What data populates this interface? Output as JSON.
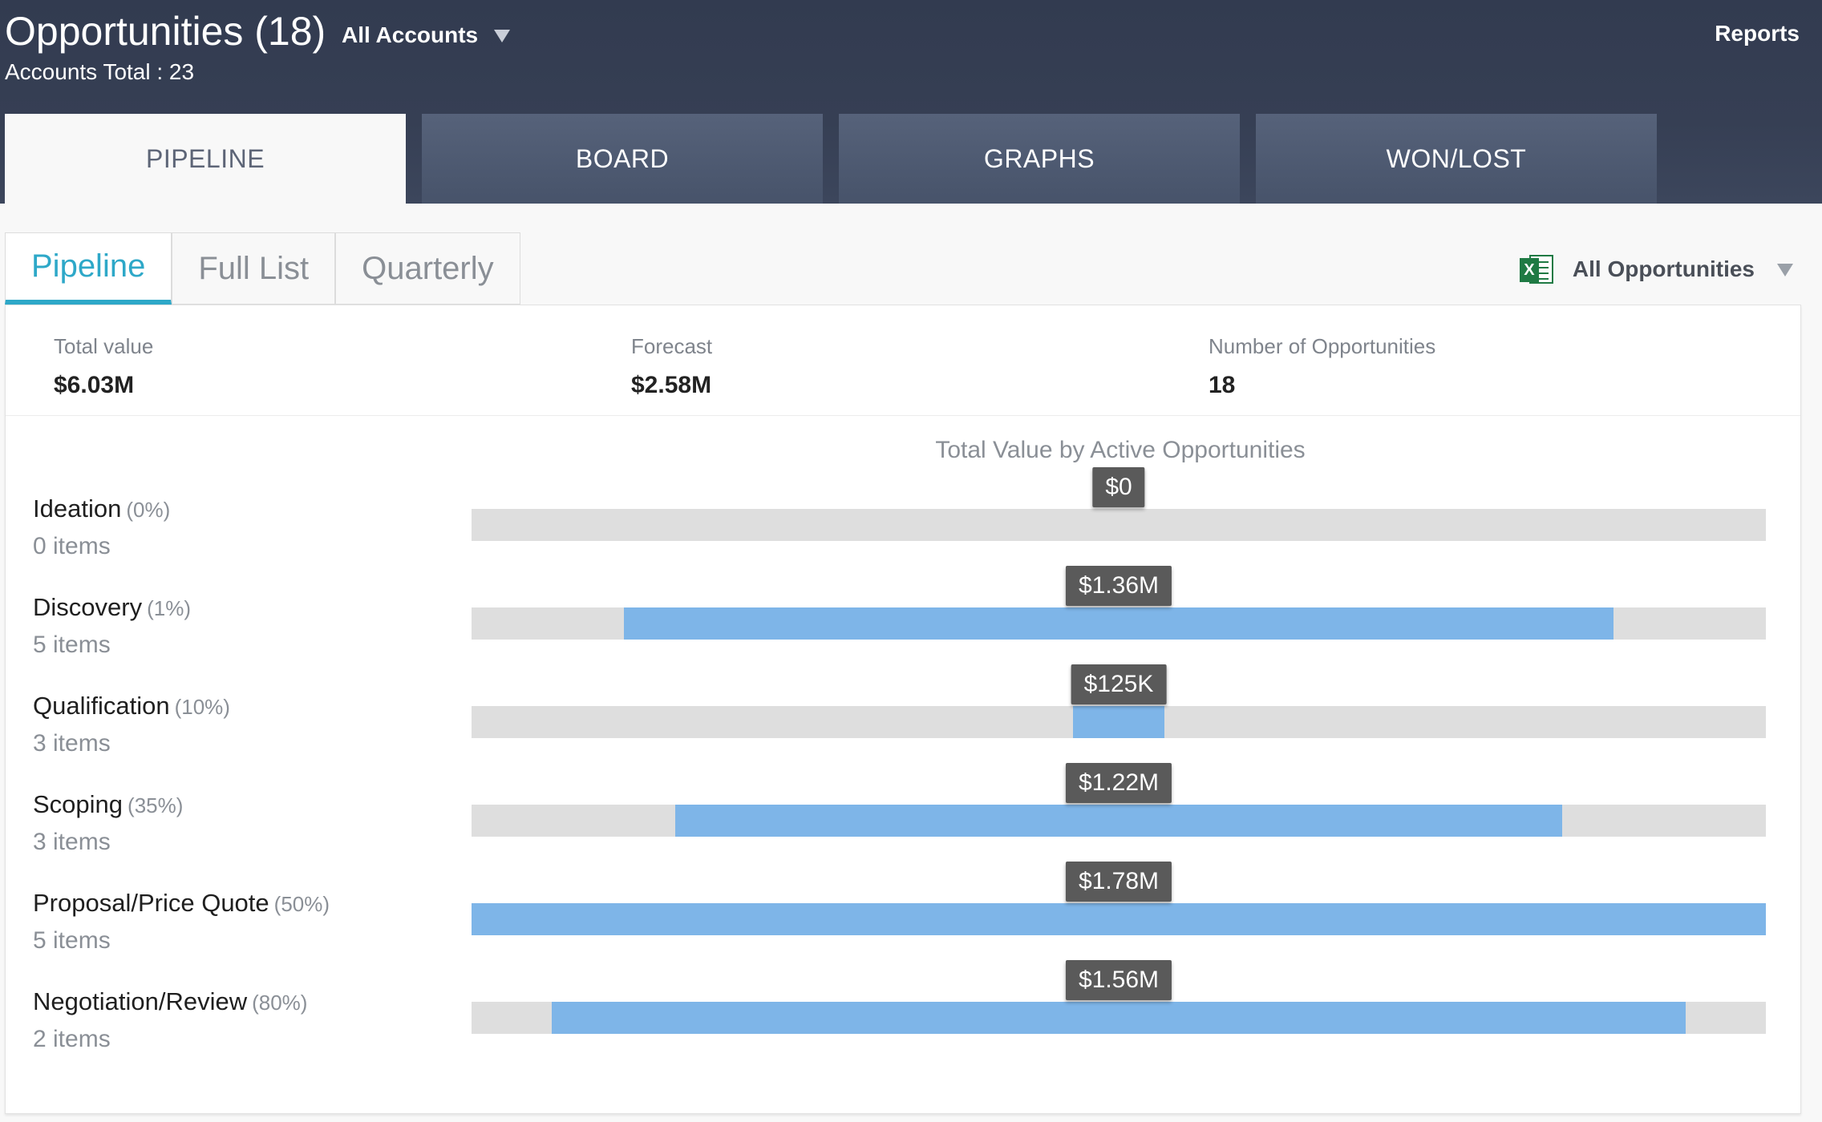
{
  "header": {
    "title": "Opportunities (18)",
    "account_filter": "All Accounts",
    "accounts_total": "Accounts Total : 23",
    "reports_label": "Reports"
  },
  "main_tabs": [
    {
      "label": "PIPELINE",
      "active": true
    },
    {
      "label": "BOARD",
      "active": false
    },
    {
      "label": "GRAPHS",
      "active": false
    },
    {
      "label": "WON/LOST",
      "active": false
    }
  ],
  "sub_tabs": [
    {
      "label": "Pipeline",
      "active": true
    },
    {
      "label": "Full List",
      "active": false
    },
    {
      "label": "Quarterly",
      "active": false
    }
  ],
  "export": {
    "icon": "excel-icon",
    "icon_letter": "X",
    "opportunity_filter": "All Opportunities"
  },
  "stats": [
    {
      "label": "Total value",
      "value": "$6.03M"
    },
    {
      "label": "Forecast",
      "value": "$2.58M"
    },
    {
      "label": "Number of Opportunities",
      "value": "18"
    }
  ],
  "chart_data": {
    "type": "bar",
    "title": "Total Value by Active Opportunities",
    "orientation": "horizontal-centered",
    "categories": [
      "Ideation",
      "Discovery",
      "Qualification",
      "Scoping",
      "Proposal/Price Quote",
      "Negotiation/Review"
    ],
    "stages": [
      {
        "name": "Ideation",
        "probability": "(0%)",
        "items": "0 items",
        "value": 0,
        "value_label": "$0"
      },
      {
        "name": "Discovery",
        "probability": "(1%)",
        "items": "5 items",
        "value": 1360000,
        "value_label": "$1.36M"
      },
      {
        "name": "Qualification",
        "probability": "(10%)",
        "items": "3 items",
        "value": 125000,
        "value_label": "$125K"
      },
      {
        "name": "Scoping",
        "probability": "(35%)",
        "items": "3 items",
        "value": 1220000,
        "value_label": "$1.22M"
      },
      {
        "name": "Proposal/Price Quote",
        "probability": "(50%)",
        "items": "5 items",
        "value": 1780000,
        "value_label": "$1.78M"
      },
      {
        "name": "Negotiation/Review",
        "probability": "(80%)",
        "items": "2 items",
        "value": 1560000,
        "value_label": "$1.56M"
      }
    ],
    "max_value": 1780000,
    "colors": {
      "fill": "#7eb5e8",
      "track": "#dedede",
      "badge": "#5a5a5a"
    }
  },
  "colors": {
    "header_bg": "#343d52",
    "active_tab_text": "#5d6577",
    "accent": "#2ea8c8",
    "excel_green": "#1f7a44"
  }
}
